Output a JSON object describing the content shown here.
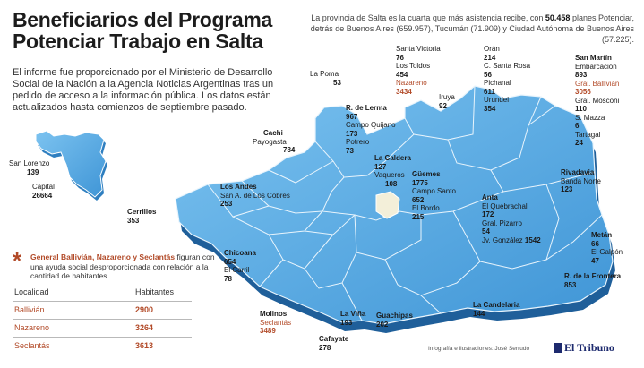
{
  "title": {
    "line1": "Beneficiarios del Programa",
    "line2": "Potenciar Trabajo en Salta"
  },
  "intro": "El informe fue proporcionado por el Ministerio de Desarrollo Social de la Nación a la Agencia Noticias Argentinas tras un pedido de acceso a la información pública. Los datos están actualizados hasta comienzos de septiembre pasado.",
  "note": {
    "before": "La provincia de Salta es la cuarta que más asistencia recibe, con ",
    "highlight": "50.458",
    "after": " planes Potenciar, detrás de Buenos Aires (659.957), Tucumán (71.909) y Ciudad Autónoma de Buenos Aires (57.225)."
  },
  "inset": {
    "san_lorenzo": {
      "name": "San Lorenzo",
      "value": "139"
    },
    "capital": {
      "name": "Capital",
      "value": "26664"
    }
  },
  "departments": {
    "la_poma": {
      "name": "La Poma",
      "value": "53"
    },
    "santa_victoria": {
      "name": "Santa Victoria",
      "value": "76"
    },
    "los_toldos": {
      "name": "Los Toldos",
      "value": "454"
    },
    "nazareno": {
      "name": "Nazareno",
      "value": "3434"
    },
    "iruya": {
      "name": "Iruya",
      "value": "92"
    },
    "oran": {
      "name": "Orán",
      "value": "214"
    },
    "c_santa_rosa": {
      "name": "C. Santa Rosa",
      "value": "56"
    },
    "pichanal": {
      "name": "Pichanal",
      "value": "611"
    },
    "urundel": {
      "name": "Urundel",
      "value": "354"
    },
    "san_martin": {
      "name": "San Martín",
      "value": ""
    },
    "embarcacion": {
      "name": "Embarcación",
      "value": "893"
    },
    "gral_ballivian": {
      "name": "Gral. Ballivián",
      "value": "3056"
    },
    "gral_mosconi": {
      "name": "Gral. Mosconi",
      "value": "110"
    },
    "s_mazza": {
      "name": "S. Mazza",
      "value": "6"
    },
    "tartagal": {
      "name": "Tartagal",
      "value": "24"
    },
    "r_de_lerma": {
      "name": "R. de Lerma",
      "value": "967"
    },
    "campo_quijano": {
      "name": "Campo Quijano",
      "value": "173"
    },
    "potrero": {
      "name": "Potrero",
      "value": "73"
    },
    "cachi": {
      "name": "Cachi",
      "value": ""
    },
    "payogasta": {
      "name": "Payogasta",
      "value": "784"
    },
    "la_caldera": {
      "name": "La Caldera",
      "value": "127"
    },
    "vaqueros": {
      "name": "Vaqueros",
      "value": "108"
    },
    "guemes": {
      "name": "Güemes",
      "value": "1775"
    },
    "campo_santo": {
      "name": "Campo Santo",
      "value": "652"
    },
    "el_bordo": {
      "name": "El Bordo",
      "value": "215"
    },
    "los_andes": {
      "name": "Los Andes",
      "value": ""
    },
    "san_a_cobres": {
      "name": "San A. de Los Cobres",
      "value": "253"
    },
    "rivadavia": {
      "name": "Rivadavia",
      "value": ""
    },
    "banda_norte": {
      "name": "Banda Norte",
      "value": "123"
    },
    "anta": {
      "name": "Anta",
      "value": ""
    },
    "el_quebrachal": {
      "name": "El Quebrachal",
      "value": "172"
    },
    "gral_pizarro": {
      "name": "Gral. Pizarro",
      "value": "54"
    },
    "jv_gonzalez": {
      "name": "Jv. González",
      "value": "1542"
    },
    "cerrillos": {
      "name": "Cerrillos",
      "value": "353"
    },
    "chicoana": {
      "name": "Chicoana",
      "value": "654"
    },
    "el_carril": {
      "name": "El Carril",
      "value": "78"
    },
    "metan": {
      "name": "Metán",
      "value": "66"
    },
    "el_galpon": {
      "name": "El Galpón",
      "value": "47"
    },
    "r_de_la_frontera": {
      "name": "R. de la Frontera",
      "value": "853"
    },
    "molinos": {
      "name": "Molinos",
      "value": ""
    },
    "seclantas": {
      "name": "Seclantás",
      "value": "3489"
    },
    "la_vina": {
      "name": "La Viña",
      "value": "193"
    },
    "guachipas": {
      "name": "Guachipas",
      "value": "202"
    },
    "la_candelaria": {
      "name": "La Candelaria",
      "value": "144"
    },
    "cafayate": {
      "name": "Cafayate",
      "value": "278"
    }
  },
  "footnote": {
    "highlight": "General Ballivián, Nazareno y Seclantás",
    "text": "figuran con una ayuda social desproporcionada con relación a la cantidad de habitantes."
  },
  "table": {
    "headers": [
      "Localidad",
      "Habitantes"
    ],
    "rows": [
      {
        "name": "Ballivián",
        "value": "2900"
      },
      {
        "name": "Nazareno",
        "value": "3264"
      },
      {
        "name": "Seclantás",
        "value": "3613"
      }
    ]
  },
  "credit": "Infografía e ilustraciones: José Serrudo",
  "brand": "El Tribuno",
  "colors": {
    "map_fill": "#5aaee6",
    "map_dark": "#2f7fc0",
    "map_shadow": "#1f5f9a",
    "highlight": "#b24a28",
    "capital": "#f3efd9"
  }
}
